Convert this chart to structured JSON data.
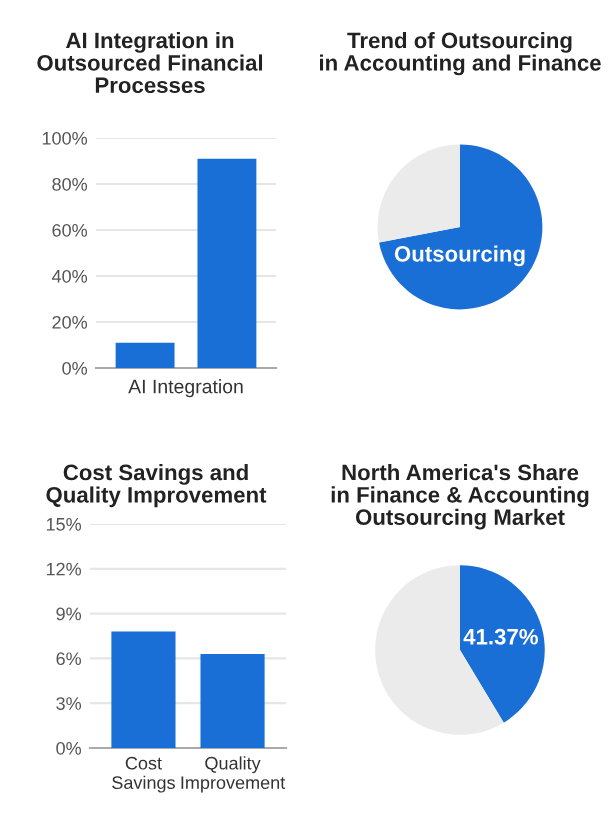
{
  "chart_data": [
    {
      "type": "bar",
      "title": "AI Integration in\nOutsourced Financial\nProcesses",
      "categories": [
        null,
        null
      ],
      "xlabel": "AI Integration",
      "values": [
        11,
        91
      ],
      "color": "#1a6fd6",
      "ylim": [
        0,
        100
      ],
      "yticks": [
        {
          "value": 0,
          "label": "0%"
        },
        {
          "value": 20,
          "label": "20%"
        },
        {
          "value": 40,
          "label": "40%"
        },
        {
          "value": 60,
          "label": "60%"
        },
        {
          "value": 80,
          "label": "80%"
        },
        {
          "value": 100,
          "label": "100%"
        }
      ],
      "grid": "y"
    },
    {
      "type": "pie",
      "title": "Trend of Outsourcing\nin Accounting and Finance",
      "categories": [
        "Outsourcing",
        null
      ],
      "values": [
        72,
        28
      ],
      "colors": [
        "#1a6fd6",
        "#ebebeb"
      ]
    },
    {
      "type": "bar",
      "title": "Cost Savings and\nQuality Improvement",
      "categories": [
        "Cost\nSavings",
        "Quality\nImprovement"
      ],
      "values": [
        7.8,
        6.3
      ],
      "color": "#1a6fd6",
      "ylim": [
        0,
        15
      ],
      "yticks": [
        {
          "value": 0,
          "label": "0%"
        },
        {
          "value": 3,
          "label": "3%"
        },
        {
          "value": 6,
          "label": "6%"
        },
        {
          "value": 9,
          "label": "9%"
        },
        {
          "value": 12,
          "label": "12%"
        },
        {
          "value": 15,
          "label": "15%"
        }
      ],
      "grid": "y"
    },
    {
      "type": "pie",
      "title": "North America's Share\nin Finance & Accounting\nOutsourcing Market",
      "categories": [
        null,
        null
      ],
      "values": [
        41.37,
        58.63
      ],
      "value_labels": [
        "41.37%",
        null
      ],
      "colors": [
        "#1a6fd6",
        "#ebebeb"
      ]
    }
  ]
}
